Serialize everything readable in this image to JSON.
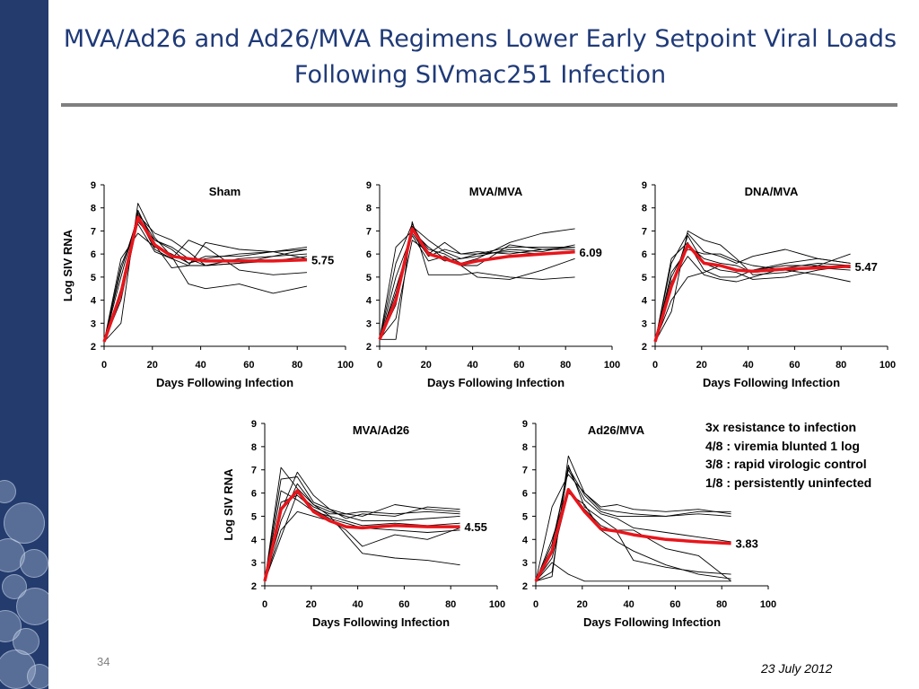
{
  "slide": {
    "title": "MVA/Ad26 and Ad26/MVA Regimens Lower Early Setpoint Viral Loads Following SIVmac251 Infection",
    "number": "34",
    "date": "23 July 2012",
    "notes": [
      "3x resistance to infection",
      "4/8 : viremia blunted 1 log",
      "3/8 : rapid virologic control",
      "1/8 : persistently uninfected"
    ]
  },
  "colors": {
    "mean_line": "#e8151b",
    "individual_line": "#000000",
    "title": "#1f3a78",
    "sidebar": "#243b6e"
  },
  "chart_data": [
    {
      "type": "line",
      "title": "Sham",
      "xlabel": "Days Following Infection",
      "ylabel": "Log SIV RNA",
      "xlim": [
        0,
        100
      ],
      "ylim": [
        2,
        9
      ],
      "xticks": [
        0,
        20,
        40,
        60,
        80,
        100
      ],
      "yticks": [
        2,
        3,
        4,
        5,
        6,
        7,
        8,
        9
      ],
      "grid": false,
      "annotation": "5.75",
      "x": [
        0,
        7,
        14,
        21,
        28,
        35,
        42,
        56,
        70,
        84
      ],
      "series": [
        {
          "values": [
            2.2,
            3.0,
            8.2,
            6.7,
            5.9,
            4.7,
            4.5,
            4.7,
            4.3,
            4.6
          ]
        },
        {
          "values": [
            2.2,
            5.3,
            7.6,
            6.2,
            5.8,
            6.6,
            6.3,
            5.3,
            5.1,
            5.2
          ]
        },
        {
          "values": [
            2.2,
            4.3,
            7.9,
            6.4,
            5.4,
            5.5,
            6.5,
            6.2,
            6.1,
            6.3
          ]
        },
        {
          "values": [
            2.2,
            5.0,
            7.7,
            6.9,
            6.6,
            6.1,
            5.5,
            5.6,
            5.9,
            6.0
          ]
        },
        {
          "values": [
            2.2,
            5.5,
            7.3,
            6.1,
            5.8,
            5.5,
            5.5,
            5.8,
            5.9,
            6.2
          ]
        },
        {
          "values": [
            2.2,
            4.5,
            7.8,
            6.6,
            6.2,
            5.6,
            5.9,
            5.9,
            6.1,
            5.8
          ]
        },
        {
          "values": [
            2.2,
            5.8,
            6.9,
            6.3,
            6.0,
            5.6,
            5.8,
            6.0,
            6.1,
            6.2
          ]
        },
        {
          "values": [
            2.2,
            4.0,
            7.4,
            6.6,
            6.3,
            5.8,
            5.5,
            5.6,
            5.7,
            5.9
          ]
        },
        {
          "name": "mean",
          "values": [
            2.2,
            4.3,
            7.6,
            6.4,
            5.9,
            5.8,
            5.7,
            5.7,
            5.7,
            5.75
          ]
        }
      ]
    },
    {
      "type": "line",
      "title": "MVA/MVA",
      "xlabel": "Days Following Infection",
      "ylabel": "",
      "xlim": [
        0,
        100
      ],
      "ylim": [
        2,
        9
      ],
      "xticks": [
        0,
        20,
        40,
        60,
        80,
        100
      ],
      "yticks": [
        2,
        3,
        4,
        5,
        6,
        7,
        8,
        9
      ],
      "grid": false,
      "annotation": "6.09",
      "x": [
        0,
        7,
        14,
        21,
        28,
        35,
        42,
        56,
        70,
        84
      ],
      "series": [
        {
          "values": [
            2.3,
            2.3,
            7.4,
            5.1,
            5.1,
            5.1,
            5.2,
            5.0,
            4.9,
            5.0
          ]
        },
        {
          "values": [
            2.3,
            5.6,
            7.3,
            6.0,
            6.5,
            6.0,
            6.0,
            6.3,
            6.3,
            6.3
          ]
        },
        {
          "values": [
            2.3,
            4.3,
            7.1,
            6.2,
            6.0,
            5.6,
            5.8,
            6.5,
            6.9,
            7.1
          ]
        },
        {
          "values": [
            2.3,
            6.3,
            7.0,
            6.3,
            5.8,
            5.5,
            5.0,
            4.9,
            5.3,
            5.8
          ]
        },
        {
          "values": [
            2.3,
            3.8,
            7.2,
            6.6,
            6.1,
            5.8,
            5.9,
            6.2,
            6.1,
            6.4
          ]
        },
        {
          "values": [
            2.3,
            4.5,
            6.8,
            5.7,
            5.9,
            5.5,
            5.5,
            6.4,
            6.2,
            6.2
          ]
        },
        {
          "values": [
            2.3,
            3.2,
            6.6,
            6.1,
            5.7,
            5.8,
            6.0,
            6.1,
            6.0,
            6.1
          ]
        },
        {
          "values": [
            2.3,
            5.0,
            6.9,
            5.9,
            6.2,
            6.0,
            6.1,
            6.0,
            6.2,
            6.3
          ]
        },
        {
          "name": "mean",
          "values": [
            2.3,
            4.0,
            7.1,
            6.0,
            5.8,
            5.55,
            5.7,
            5.9,
            6.0,
            6.09
          ]
        }
      ]
    },
    {
      "type": "line",
      "title": "DNA/MVA",
      "xlabel": "Days Following Infection",
      "ylabel": "",
      "xlim": [
        0,
        100
      ],
      "ylim": [
        2,
        9
      ],
      "xticks": [
        0,
        20,
        40,
        60,
        80,
        100
      ],
      "yticks": [
        2,
        3,
        4,
        5,
        6,
        7,
        8,
        9
      ],
      "grid": false,
      "annotation": "5.47",
      "x": [
        0,
        7,
        14,
        21,
        28,
        35,
        42,
        56,
        70,
        84
      ],
      "series": [
        {
          "values": [
            2.2,
            3.5,
            7.0,
            6.6,
            6.4,
            5.8,
            5.1,
            5.2,
            5.5,
            6.0
          ]
        },
        {
          "values": [
            2.2,
            5.8,
            6.5,
            5.3,
            5.0,
            5.0,
            5.3,
            5.6,
            5.8,
            5.6
          ]
        },
        {
          "values": [
            2.2,
            4.5,
            6.8,
            5.6,
            5.3,
            5.2,
            4.9,
            5.0,
            5.3,
            5.5
          ]
        },
        {
          "values": [
            2.2,
            5.2,
            6.2,
            6.0,
            6.0,
            5.7,
            5.5,
            5.3,
            5.1,
            4.8
          ]
        },
        {
          "values": [
            2.2,
            4.8,
            5.9,
            5.1,
            4.9,
            4.8,
            5.0,
            5.4,
            5.6,
            5.5
          ]
        },
        {
          "values": [
            2.2,
            5.6,
            6.9,
            6.1,
            5.9,
            5.6,
            5.9,
            6.2,
            5.8,
            5.6
          ]
        },
        {
          "values": [
            2.2,
            4.0,
            5.0,
            5.2,
            5.5,
            5.3,
            5.3,
            5.5,
            5.5,
            5.4
          ]
        },
        {
          "values": [
            2.2,
            5.0,
            6.4,
            5.8,
            5.6,
            5.5,
            5.2,
            5.3,
            5.4,
            5.3
          ]
        },
        {
          "name": "mean",
          "values": [
            2.2,
            4.6,
            6.4,
            5.6,
            5.5,
            5.3,
            5.25,
            5.35,
            5.4,
            5.47
          ]
        }
      ]
    },
    {
      "type": "line",
      "title": "MVA/Ad26",
      "xlabel": "Days Following Infection",
      "ylabel": "Log SIV RNA",
      "xlim": [
        0,
        100
      ],
      "ylim": [
        2,
        9
      ],
      "xticks": [
        0,
        20,
        40,
        60,
        80,
        100
      ],
      "yticks": [
        2,
        3,
        4,
        5,
        6,
        7,
        8,
        9
      ],
      "grid": false,
      "annotation": "4.55",
      "x": [
        0,
        7,
        14,
        21,
        28,
        35,
        42,
        56,
        70,
        84
      ],
      "series": [
        {
          "values": [
            2.2,
            7.1,
            6.2,
            5.5,
            5.0,
            4.2,
            3.4,
            3.2,
            3.1,
            2.9
          ]
        },
        {
          "values": [
            2.2,
            6.6,
            6.7,
            5.6,
            5.3,
            5.1,
            5.0,
            5.5,
            5.3,
            5.2
          ]
        },
        {
          "values": [
            2.2,
            5.2,
            6.9,
            5.9,
            5.3,
            4.9,
            5.1,
            5.0,
            5.4,
            5.3
          ]
        },
        {
          "values": [
            2.2,
            4.4,
            5.2,
            5.0,
            4.8,
            4.4,
            3.7,
            4.2,
            4.0,
            4.5
          ]
        },
        {
          "values": [
            2.2,
            6.1,
            5.7,
            5.2,
            5.0,
            4.8,
            4.6,
            4.7,
            4.6,
            4.7
          ]
        },
        {
          "values": [
            2.2,
            4.8,
            6.4,
            5.5,
            5.2,
            5.0,
            4.8,
            4.8,
            4.9,
            5.0
          ]
        },
        {
          "values": [
            2.2,
            5.6,
            5.9,
            5.3,
            4.9,
            4.7,
            4.5,
            4.4,
            4.3,
            4.4
          ]
        },
        {
          "values": [
            2.2,
            4.1,
            6.0,
            5.4,
            5.1,
            5.1,
            5.2,
            5.1,
            5.2,
            5.1
          ]
        },
        {
          "name": "mean",
          "values": [
            2.2,
            5.3,
            6.1,
            5.2,
            4.8,
            4.55,
            4.5,
            4.6,
            4.55,
            4.55
          ]
        }
      ]
    },
    {
      "type": "line",
      "title": "Ad26/MVA",
      "xlabel": "Days Following Infection",
      "ylabel": "",
      "xlim": [
        0,
        100
      ],
      "ylim": [
        2,
        9
      ],
      "xticks": [
        0,
        20,
        40,
        60,
        80,
        100
      ],
      "yticks": [
        2,
        3,
        4,
        5,
        6,
        7,
        8,
        9
      ],
      "grid": false,
      "annotation": "3.83",
      "x": [
        0,
        7,
        14,
        21,
        28,
        35,
        42,
        56,
        70,
        84
      ],
      "series": [
        {
          "values": [
            2.2,
            2.4,
            7.6,
            6.0,
            5.3,
            5.2,
            5.1,
            5.0,
            5.2,
            5.2
          ]
        },
        {
          "values": [
            2.2,
            5.4,
            6.8,
            6.0,
            5.4,
            5.5,
            5.3,
            5.2,
            5.3,
            5.1
          ]
        },
        {
          "values": [
            2.2,
            3.5,
            7.2,
            5.4,
            4.9,
            4.4,
            4.4,
            3.6,
            3.3,
            2.2
          ]
        },
        {
          "values": [
            2.2,
            4.0,
            6.2,
            5.3,
            4.6,
            4.3,
            3.1,
            2.8,
            2.6,
            2.5
          ]
        },
        {
          "values": [
            2.2,
            3.0,
            2.5,
            2.2,
            2.2,
            2.2,
            2.2,
            2.2,
            2.2,
            2.2
          ]
        },
        {
          "values": [
            2.2,
            3.8,
            7.0,
            5.7,
            5.1,
            4.9,
            4.5,
            4.3,
            4.1,
            3.9
          ]
        },
        {
          "values": [
            2.2,
            3.2,
            6.0,
            5.5,
            4.4,
            3.9,
            3.5,
            2.9,
            2.5,
            2.3
          ]
        },
        {
          "values": [
            2.2,
            2.6,
            7.1,
            5.9,
            5.2,
            5.0,
            5.0,
            5.0,
            5.1,
            5.0
          ]
        },
        {
          "name": "mean",
          "values": [
            2.2,
            3.5,
            6.15,
            5.2,
            4.45,
            4.35,
            4.2,
            4.0,
            3.9,
            3.83
          ]
        }
      ]
    }
  ]
}
